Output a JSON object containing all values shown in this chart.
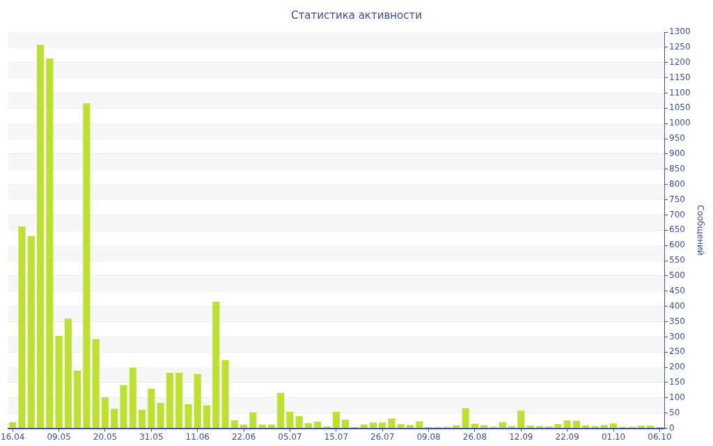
{
  "chart_data": {
    "type": "bar",
    "title": "Статистика активности",
    "ylabel": "Сообщений",
    "categories": [
      "16.04",
      null,
      null,
      null,
      null,
      "09.05",
      null,
      null,
      null,
      null,
      "20.05",
      null,
      null,
      null,
      null,
      "31.05",
      null,
      null,
      null,
      null,
      "11.06",
      null,
      null,
      null,
      null,
      "22.06",
      null,
      null,
      null,
      null,
      "05.07",
      null,
      null,
      null,
      null,
      "15.07",
      null,
      null,
      null,
      null,
      "26.07",
      null,
      null,
      null,
      null,
      "09.08",
      null,
      null,
      null,
      null,
      "26.08",
      null,
      null,
      null,
      null,
      "12.09",
      null,
      null,
      null,
      null,
      "22.09",
      null,
      null,
      null,
      null,
      "01.10",
      null,
      null,
      null,
      null,
      "06.10"
    ],
    "values": [
      20,
      662,
      631,
      1258,
      1213,
      303,
      360,
      189,
      1066,
      293,
      102,
      64,
      142,
      199,
      61,
      130,
      83,
      182,
      182,
      79,
      178,
      75,
      415,
      224,
      26,
      12,
      52,
      12,
      12,
      116,
      54,
      40,
      17,
      22,
      6,
      54,
      28,
      4,
      12,
      19,
      19,
      32,
      14,
      11,
      23,
      4,
      4,
      5,
      10,
      66,
      15,
      10,
      5,
      20,
      7,
      58,
      9,
      7,
      6,
      14,
      26,
      25,
      10,
      7,
      11,
      16,
      4,
      5,
      9,
      9,
      4
    ],
    "color": "#bde131",
    "ylim": [
      0,
      1300
    ],
    "yticks": [
      0,
      50,
      100,
      150,
      200,
      250,
      300,
      350,
      400,
      450,
      500,
      550,
      600,
      650,
      700,
      750,
      800,
      850,
      900,
      950,
      1000,
      1050,
      1100,
      1150,
      1200,
      1250,
      1300
    ],
    "grid": "y",
    "legend": false
  }
}
